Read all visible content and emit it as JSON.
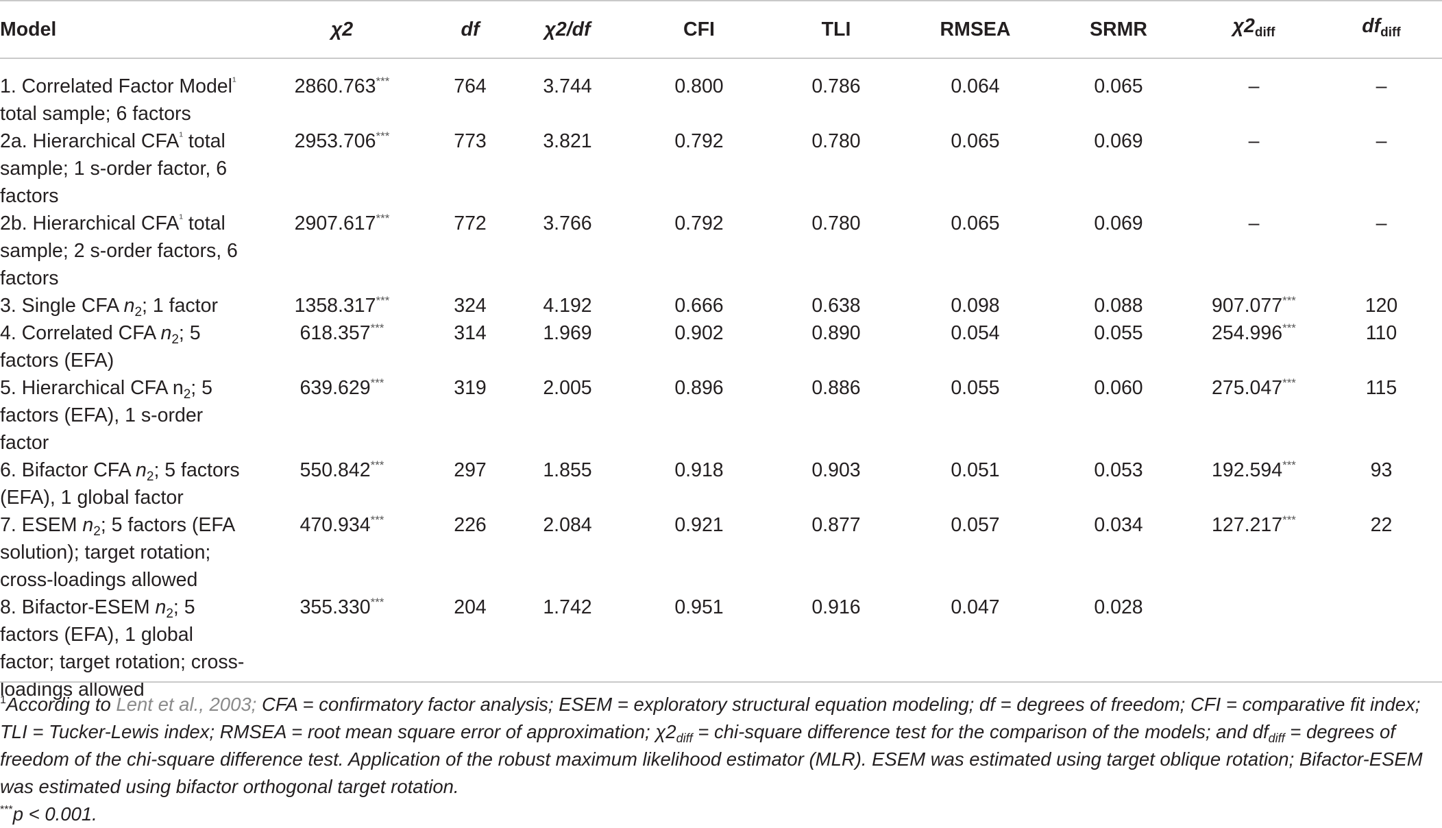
{
  "table": {
    "headers": {
      "model": "Model",
      "chi2": "χ2",
      "df": "df",
      "chi2_df": "χ2/df",
      "cfi": "CFI",
      "tli": "TLI",
      "rmsea": "RMSEA",
      "srmr": "SRMR",
      "chi2_diff_base": "χ2",
      "chi2_diff_sub": "diff",
      "df_diff_base": "df",
      "df_diff_sub": "diff"
    },
    "sig_mark": "***",
    "rows": [
      {
        "model_parts": [
          "1. Correlated Factor Model",
          "¹",
          " total sample; 6 factors"
        ],
        "chi2": "2860.763",
        "chi2_sig": "***",
        "df": "764",
        "chi2_df": "3.744",
        "cfi": "0.800",
        "tli": "0.786",
        "rmsea": "0.064",
        "srmr": "0.065",
        "chi2_diff": "–",
        "chi2_diff_sig": "",
        "df_diff": "–"
      },
      {
        "model_parts": [
          "2a. Hierarchical CFA",
          "¹",
          " total sample; 1 s-order factor, 6 factors"
        ],
        "chi2": "2953.706",
        "chi2_sig": "***",
        "df": "773",
        "chi2_df": "3.821",
        "cfi": "0.792",
        "tli": "0.780",
        "rmsea": "0.065",
        "srmr": "0.069",
        "chi2_diff": "–",
        "chi2_diff_sig": "",
        "df_diff": "–"
      },
      {
        "model_parts": [
          "2b. Hierarchical CFA",
          "¹",
          " total sample; 2 s-order factors, 6 factors"
        ],
        "chi2": "2907.617",
        "chi2_sig": "***",
        "df": "772",
        "chi2_df": "3.766",
        "cfi": "0.792",
        "tli": "0.780",
        "rmsea": "0.065",
        "srmr": "0.069",
        "chi2_diff": "–",
        "chi2_diff_sig": "",
        "df_diff": "–"
      },
      {
        "model_parts": [
          "3. Single CFA ",
          "n",
          "2",
          "; 1 factor"
        ],
        "chi2": "1358.317",
        "chi2_sig": "***",
        "df": "324",
        "chi2_df": "4.192",
        "cfi": "0.666",
        "tli": "0.638",
        "rmsea": "0.098",
        "srmr": "0.088",
        "chi2_diff": "907.077",
        "chi2_diff_sig": "***",
        "df_diff": "120"
      },
      {
        "model_parts": [
          "4. Correlated CFA ",
          "n",
          "2",
          "; 5 factors (EFA)"
        ],
        "chi2": "618.357",
        "chi2_sig": "***",
        "df": "314",
        "chi2_df": "1.969",
        "cfi": "0.902",
        "tli": "0.890",
        "rmsea": "0.054",
        "srmr": "0.055",
        "chi2_diff": "254.996",
        "chi2_diff_sig": "***",
        "df_diff": "110"
      },
      {
        "model_parts": [
          "5. Hierarchical CFA n",
          "",
          "2",
          "; 5 factors (EFA), 1 s-order factor"
        ],
        "chi2": "639.629",
        "chi2_sig": "***",
        "df": "319",
        "chi2_df": "2.005",
        "cfi": "0.896",
        "tli": "0.886",
        "rmsea": "0.055",
        "srmr": "0.060",
        "chi2_diff": "275.047",
        "chi2_diff_sig": "***",
        "df_diff": "115"
      },
      {
        "model_parts": [
          "6. Bifactor CFA ",
          "n",
          "2",
          "; 5 factors (EFA), 1 global factor"
        ],
        "chi2": "550.842",
        "chi2_sig": "***",
        "df": "297",
        "chi2_df": "1.855",
        "cfi": "0.918",
        "tli": "0.903",
        "rmsea": "0.051",
        "srmr": "0.053",
        "chi2_diff": "192.594",
        "chi2_diff_sig": "***",
        "df_diff": "93"
      },
      {
        "model_parts": [
          "7. ESEM ",
          "n",
          "2",
          "; 5 factors (EFA solution); target rotation; cross-loadings allowed"
        ],
        "chi2": "470.934",
        "chi2_sig": "***",
        "df": "226",
        "chi2_df": "2.084",
        "cfi": "0.921",
        "tli": "0.877",
        "rmsea": "0.057",
        "srmr": "0.034",
        "chi2_diff": "127.217",
        "chi2_diff_sig": "***",
        "df_diff": "22"
      },
      {
        "model_parts": [
          "8. Bifactor-ESEM ",
          "n",
          "2",
          "; 5 factors (EFA), 1 global factor; target rotation; cross-loadings allowed"
        ],
        "chi2": "355.330",
        "chi2_sig": "***",
        "df": "204",
        "chi2_df": "1.742",
        "cfi": "0.951",
        "tli": "0.916",
        "rmsea": "0.047",
        "srmr": "0.028",
        "chi2_diff": "",
        "chi2_diff_sig": "",
        "df_diff": ""
      }
    ]
  },
  "footnote": {
    "sup1": "1",
    "lead": "According to ",
    "ref": "Lent et al., 2003;",
    "text_a": " CFA = confirmatory factor analysis; ESEM = exploratory structural equation modeling; df = degrees of freedom; CFI = comparative fit index; TLI = Tucker-Lewis index; RMSEA = root mean square error of approximation; χ2",
    "sub_diff_1": "diff",
    "text_b": " = chi-square difference test for the comparison of the models; and df",
    "sub_diff_2": "diff",
    "text_c": " = degrees of freedom of the chi-square difference test. Application of the robust maximum likelihood estimator (MLR). ESEM was estimated using target oblique rotation; Bifactor-ESEM was estimated using bifactor orthogonal target rotation.",
    "sig_sup": "***",
    "sig_text": "p < 0.001."
  }
}
